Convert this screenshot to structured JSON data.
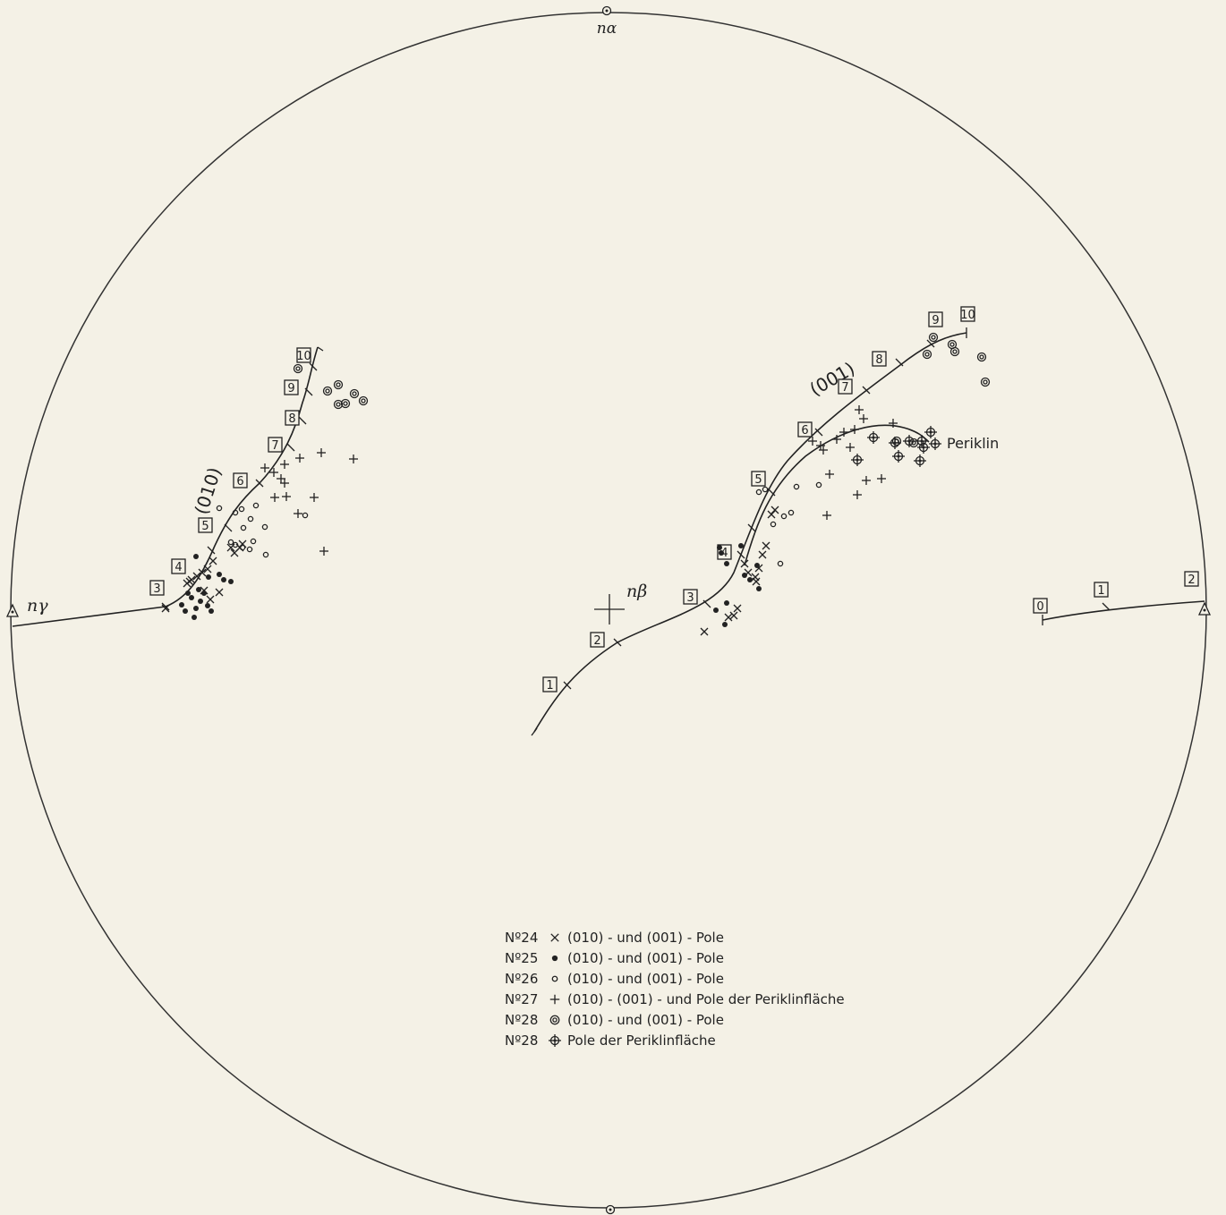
{
  "axes": {
    "top": "nα",
    "left": "nγ",
    "center": "nβ"
  },
  "curves": {
    "c010": {
      "label": "(010)",
      "ticks": [
        "3",
        "4",
        "5",
        "6",
        "7",
        "8",
        "9",
        "10"
      ]
    },
    "c001": {
      "label": "(001)",
      "ticks": [
        "1",
        "2",
        "3",
        "4",
        "5",
        "6",
        "7",
        "8",
        "9",
        "10"
      ]
    },
    "periklin": {
      "label": "Periklin"
    },
    "right": {
      "ticks": [
        "0",
        "1",
        "2"
      ]
    }
  },
  "legend": [
    {
      "no": "Nº24",
      "symbol": "x",
      "text": "(010) - und (001) - Pole"
    },
    {
      "no": "Nº25",
      "symbol": "dot",
      "text": "(010) - und (001) - Pole"
    },
    {
      "no": "Nº26",
      "symbol": "ring",
      "text": "(010) - und (001) - Pole"
    },
    {
      "no": "Nº27",
      "symbol": "plus",
      "text": "(010) - (001) - und Pole der Periklinfläche"
    },
    {
      "no": "Nº28",
      "symbol": "double",
      "text": "(010) - und (001) - Pole"
    },
    {
      "no": "Nº28",
      "symbol": "cross-ring",
      "text": "Pole der Periklinfläche"
    }
  ]
}
